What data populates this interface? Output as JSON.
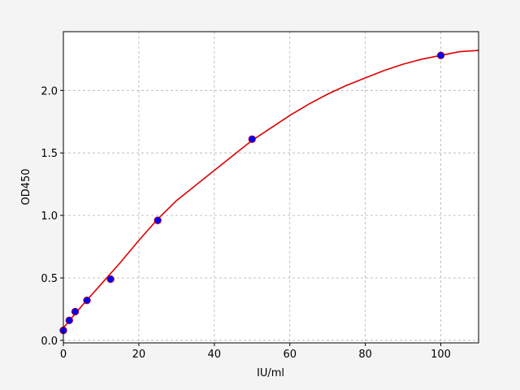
{
  "chart_data": {
    "type": "scatter",
    "title": "",
    "xlabel": "IU/ml",
    "ylabel": "OD450",
    "xlim": [
      0,
      110
    ],
    "ylim": [
      -0.02,
      2.47
    ],
    "xticks": [
      0,
      20,
      40,
      60,
      80,
      100
    ],
    "yticks": [
      0.0,
      0.5,
      1.0,
      1.5,
      2.0
    ],
    "xtick_labels": [
      "0",
      "20",
      "40",
      "60",
      "80",
      "100"
    ],
    "ytick_labels": [
      "0.0",
      "0.5",
      "1.0",
      "1.5",
      "2.0"
    ],
    "grid": true,
    "series": [
      {
        "kind": "points",
        "color": "#0000ff",
        "edge_color": "#cc0000",
        "x": [
          0,
          1.56,
          3.125,
          6.25,
          12.5,
          25,
          50,
          100
        ],
        "y": [
          0.08,
          0.16,
          0.23,
          0.32,
          0.49,
          0.96,
          1.61,
          2.28
        ]
      },
      {
        "kind": "fit-curve",
        "color": "#dd0000",
        "x": [
          0,
          5,
          10,
          15,
          20,
          25,
          30,
          35,
          40,
          45,
          50,
          55,
          60,
          65,
          70,
          75,
          80,
          85,
          90,
          95,
          100,
          105,
          110
        ],
        "y": [
          0.1,
          0.28,
          0.45,
          0.62,
          0.8,
          0.97,
          1.12,
          1.24,
          1.36,
          1.48,
          1.6,
          1.7,
          1.8,
          1.89,
          1.97,
          2.04,
          2.1,
          2.16,
          2.21,
          2.25,
          2.28,
          2.31,
          2.32
        ]
      }
    ]
  }
}
